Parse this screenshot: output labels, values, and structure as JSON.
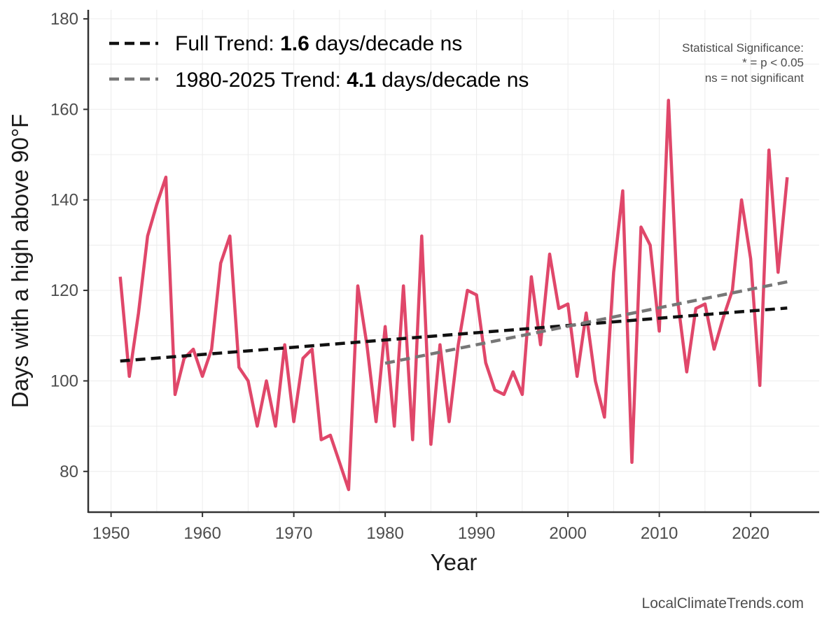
{
  "chart_data": {
    "type": "line",
    "xlabel": "Year",
    "ylabel": "Days with a high above 90°F",
    "xlim": [
      1947.5,
      2027.5
    ],
    "ylim": [
      71,
      182
    ],
    "x_ticks": [
      1950,
      1960,
      1970,
      1980,
      1990,
      2000,
      2010,
      2020
    ],
    "y_ticks": [
      80,
      100,
      120,
      140,
      160,
      180
    ],
    "grid": true,
    "legend_position": "top-left",
    "series": [
      {
        "type": "line",
        "color": "#e0476a",
        "x": [
          1951,
          1952,
          1953,
          1954,
          1955,
          1956,
          1957,
          1958,
          1959,
          1960,
          1961,
          1962,
          1963,
          1964,
          1965,
          1966,
          1967,
          1968,
          1969,
          1970,
          1971,
          1972,
          1973,
          1974,
          1975,
          1976,
          1977,
          1978,
          1979,
          1980,
          1981,
          1982,
          1983,
          1984,
          1985,
          1986,
          1987,
          1988,
          1989,
          1990,
          1991,
          1992,
          1993,
          1994,
          1995,
          1996,
          1997,
          1998,
          1999,
          2000,
          2001,
          2002,
          2003,
          2004,
          2005,
          2006,
          2007,
          2008,
          2009,
          2010,
          2011,
          2012,
          2013,
          2014,
          2015,
          2016,
          2017,
          2018,
          2019,
          2020,
          2021,
          2022,
          2023,
          2024
        ],
        "y": [
          123,
          101,
          115,
          132,
          139,
          145,
          97,
          105,
          107,
          101,
          107,
          126,
          132,
          103,
          100,
          90,
          100,
          90,
          108,
          91,
          105,
          107,
          87,
          88,
          82,
          76,
          121,
          108,
          91,
          112,
          90,
          121,
          87,
          132,
          86,
          108,
          91,
          108,
          120,
          119,
          104,
          98,
          97,
          102,
          97,
          123,
          108,
          128,
          116,
          117,
          101,
          115,
          100,
          92,
          124,
          142,
          82,
          134,
          130,
          111,
          162,
          118,
          102,
          116,
          117,
          107,
          114,
          120,
          140,
          127,
          99,
          151,
          124,
          145
        ]
      },
      {
        "name": "Full Trend",
        "type": "trend",
        "color": "#111111",
        "dash": "dashed",
        "x": [
          1951,
          2024
        ],
        "y": [
          104.4,
          116.1
        ]
      },
      {
        "name": "1980-2025 Trend",
        "type": "trend",
        "color": "#777777",
        "dash": "dashed",
        "x": [
          1980,
          2024
        ],
        "y": [
          103.9,
          121.9
        ]
      }
    ],
    "legend": [
      {
        "prefix": "Full Trend: ",
        "value": "1.6",
        "suffix": " days/decade ns",
        "color": "#111111"
      },
      {
        "prefix": "1980-2025 Trend: ",
        "value": "4.1",
        "suffix": " days/decade ns",
        "color": "#777777"
      }
    ],
    "annotation": [
      "Statistical Significance:",
      "* = p < 0.05",
      "ns = not significant"
    ],
    "source": "LocalClimateTrends.com"
  }
}
